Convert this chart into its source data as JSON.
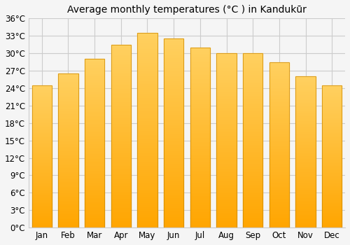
{
  "title": "Average monthly temperatures (°C ) in Kandukūr",
  "months": [
    "Jan",
    "Feb",
    "Mar",
    "Apr",
    "May",
    "Jun",
    "Jul",
    "Aug",
    "Sep",
    "Oct",
    "Nov",
    "Dec"
  ],
  "values": [
    24.5,
    26.5,
    29.0,
    31.5,
    33.5,
    32.5,
    31.0,
    30.0,
    30.0,
    28.5,
    26.0,
    24.5
  ],
  "bar_color_bottom": "#FFA500",
  "bar_color_top": "#FFD060",
  "bar_edge_color": "#CC8800",
  "ylim": [
    0,
    36
  ],
  "ytick_step": 3,
  "background_color": "#f5f5f5",
  "plot_background_color": "#f5f5f5",
  "grid_color": "#cccccc",
  "title_fontsize": 10,
  "tick_fontsize": 8.5
}
